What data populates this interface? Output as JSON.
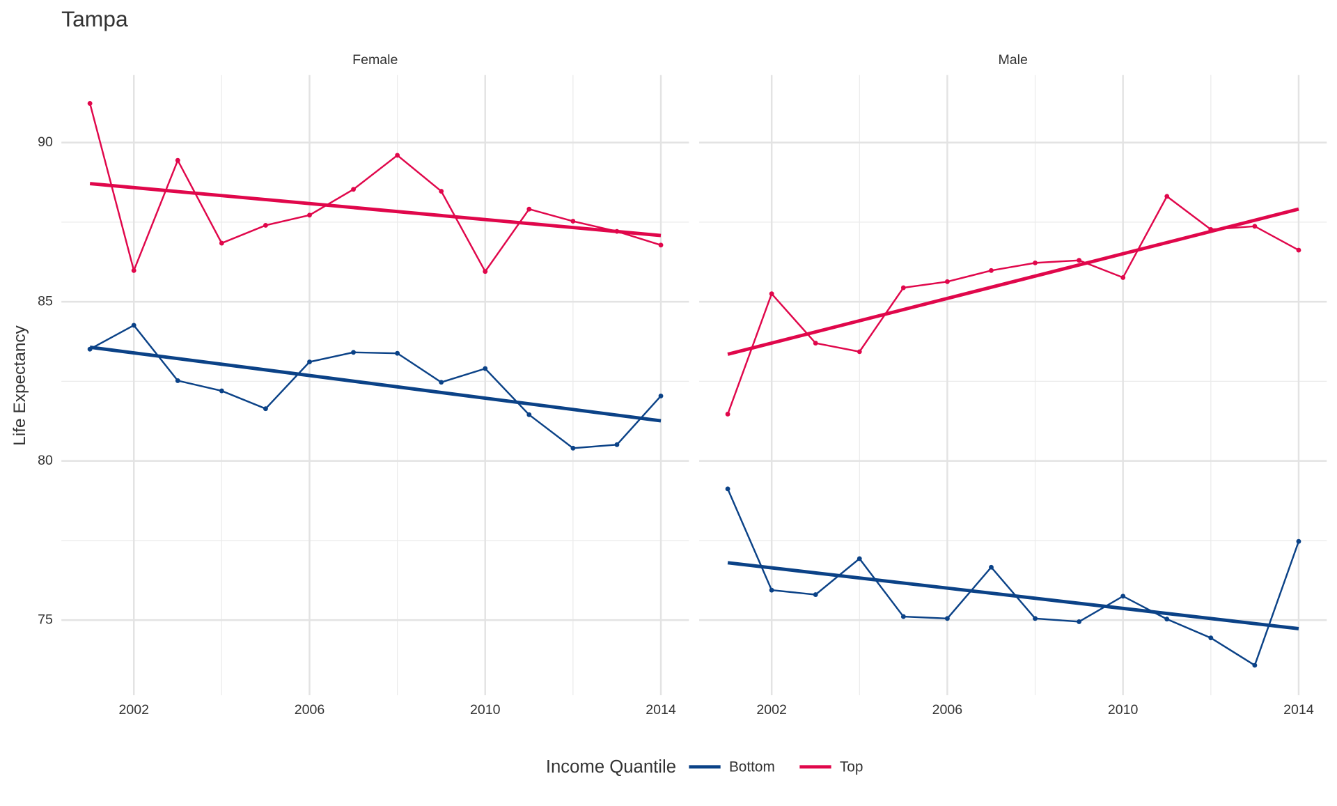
{
  "chart_data": {
    "type": "line",
    "title": "Tampa",
    "y_label": "Life Expectancy",
    "legend_title": "Income Quantile",
    "x": [
      2001,
      2002,
      2003,
      2004,
      2005,
      2006,
      2007,
      2008,
      2009,
      2010,
      2011,
      2012,
      2013,
      2014
    ],
    "xlim": [
      2000.35,
      2014.64
    ],
    "xticks": [
      2002,
      2006,
      2010,
      2014
    ],
    "x_minor": [
      2004,
      2008,
      2012
    ],
    "ylim": [
      72.64,
      92.12
    ],
    "yticks": [
      75,
      80,
      85,
      90
    ],
    "y_minor": [
      77.5,
      82.5,
      87.5
    ],
    "grid": true,
    "legend": "bottom",
    "panels": [
      {
        "title": "Female",
        "series": [
          {
            "name": "Bottom",
            "color": "#0b4287",
            "values": [
              83.51,
              84.26,
              82.52,
              82.2,
              81.64,
              83.11,
              83.41,
              83.38,
              82.47,
              82.9,
              81.45,
              80.4,
              80.51,
              82.04
            ],
            "trend": [
              83.57,
              81.26
            ]
          },
          {
            "name": "Top",
            "color": "#e0074b",
            "values": [
              91.23,
              85.98,
              89.44,
              86.84,
              87.4,
              87.72,
              88.53,
              89.6,
              88.47,
              85.95,
              87.91,
              87.53,
              87.21,
              86.78
            ],
            "trend": [
              88.71,
              87.08
            ]
          }
        ]
      },
      {
        "title": "Male",
        "series": [
          {
            "name": "Bottom",
            "color": "#0b4287",
            "values": [
              79.12,
              75.94,
              75.8,
              76.93,
              75.11,
              75.05,
              76.66,
              75.05,
              74.95,
              75.75,
              75.03,
              74.44,
              73.58,
              77.47
            ],
            "trend": [
              76.8,
              74.73
            ]
          },
          {
            "name": "Top",
            "color": "#e0074b",
            "values": [
              81.47,
              85.25,
              83.7,
              83.43,
              85.44,
              85.63,
              85.98,
              86.22,
              86.3,
              85.76,
              88.31,
              87.27,
              87.37,
              86.62
            ],
            "trend": [
              83.35,
              87.91
            ]
          }
        ]
      }
    ]
  }
}
